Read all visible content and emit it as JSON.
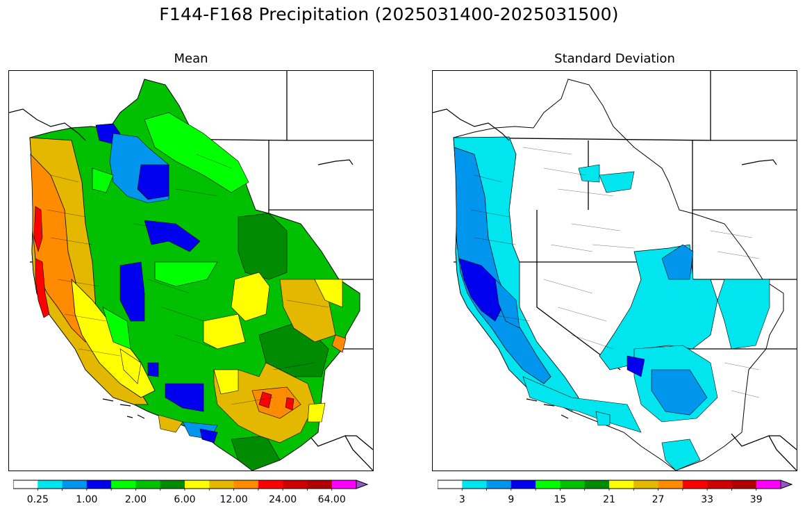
{
  "title": "F144-F168 Precipitation (2025031400-2025031500)",
  "panels": [
    {
      "id": "mean",
      "subtitle": "Mean",
      "colorbar": {
        "colors": [
          "#ffffff",
          "#00e5ee",
          "#0096ee",
          "#0000ee",
          "#00ff00",
          "#00c000",
          "#008b00",
          "#ffff00",
          "#e5b800",
          "#ff8c00",
          "#ff0000",
          "#d10000",
          "#b00000",
          "#ff00ff",
          "#9955c8"
        ],
        "tick_labels": [
          "0.25",
          "1.00",
          "2.00",
          "6.00",
          "12.00",
          "24.00",
          "64.00"
        ],
        "extend": "max"
      }
    },
    {
      "id": "std",
      "subtitle": "Standard Deviation",
      "colorbar": {
        "colors": [
          "#ffffff",
          "#00e5ee",
          "#0096ee",
          "#0000ee",
          "#00ff00",
          "#00c000",
          "#008b00",
          "#ffff00",
          "#e5b800",
          "#ff8c00",
          "#ff0000",
          "#d10000",
          "#b00000",
          "#ff00ff",
          "#9955c8"
        ],
        "tick_labels": [
          "3",
          "9",
          "15",
          "21",
          "27",
          "33",
          "39"
        ],
        "extend": "max"
      }
    }
  ]
}
